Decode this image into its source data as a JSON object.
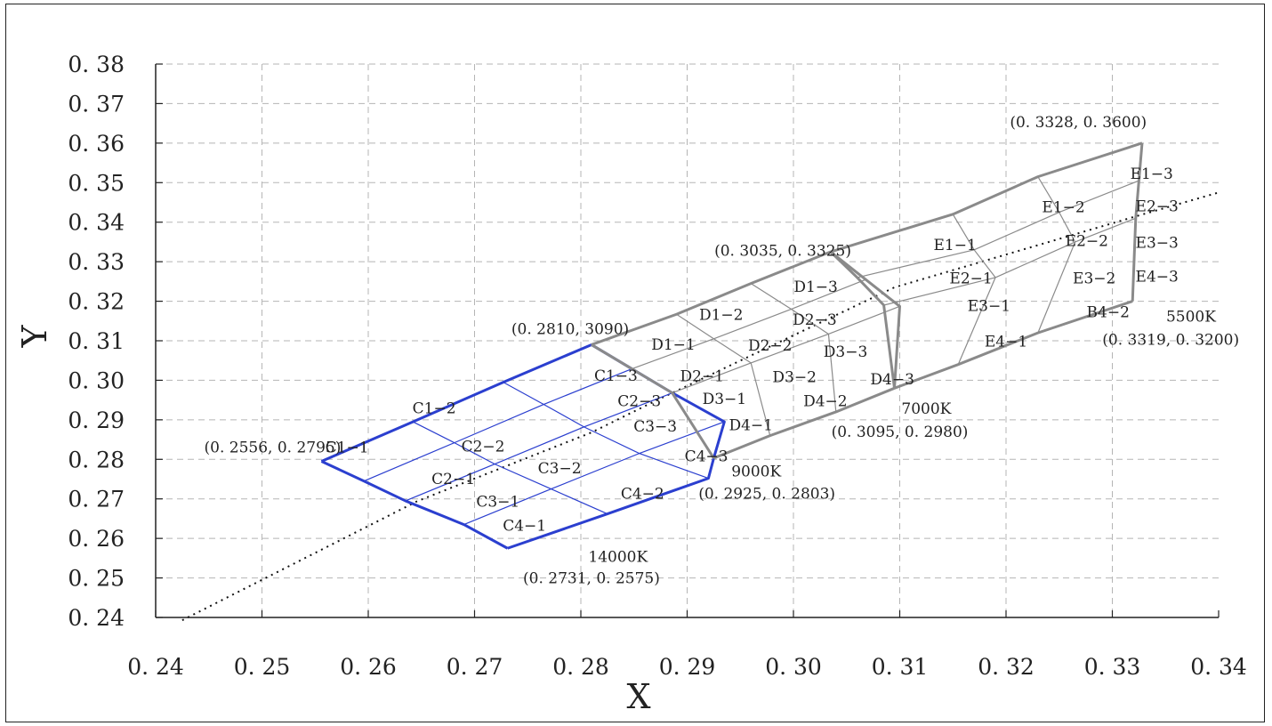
{
  "chart_data": {
    "type": "scatter",
    "xlabel": "X",
    "ylabel": "Y",
    "xlim": [
      0.24,
      0.34
    ],
    "ylim": [
      0.24,
      0.38
    ],
    "grid": true,
    "x_ticks": [
      "0. 24",
      "0. 25",
      "0. 26",
      "0. 27",
      "0. 28",
      "0. 29",
      "0. 30",
      "0. 31",
      "0. 32",
      "0. 33",
      "0. 34"
    ],
    "y_ticks": [
      "0. 24",
      "0. 25",
      "0. 26",
      "0. 27",
      "0. 28",
      "0. 29",
      "0. 30",
      "0. 31",
      "0. 32",
      "0. 33",
      "0. 34",
      "0. 35",
      "0. 36",
      "0. 37",
      "0. 38"
    ],
    "colors": {
      "C_region": "#2b3fcf",
      "DE_region": "#8a8a8a",
      "grid": "#b5b5b5"
    },
    "locus": {
      "style": "dotted",
      "points": [
        [
          0.2425,
          0.2393
        ],
        [
          0.2646,
          0.2694
        ],
        [
          0.281,
          0.2868
        ],
        [
          0.2868,
          0.2945
        ],
        [
          0.3095,
          0.3235
        ],
        [
          0.3325,
          0.3417
        ],
        [
          0.34,
          0.3475
        ]
      ]
    },
    "regions": [
      {
        "name": "C",
        "color": "#2b3fcf",
        "rows": [
          [
            [
              0.2556,
              0.2795
            ],
            [
              0.2642,
              0.2895
            ],
            [
              0.2727,
              0.2995
            ],
            [
              0.281,
              0.309
            ]
          ],
          [
            [
              0.2596,
              0.2745
            ],
            [
              0.2681,
              0.2842
            ],
            [
              0.2765,
              0.2939
            ],
            [
              0.2848,
              0.3029
            ]
          ],
          [
            [
              0.2635,
              0.2695
            ],
            [
              0.2719,
              0.2788
            ],
            [
              0.2803,
              0.2882
            ],
            [
              0.2886,
              0.2968
            ]
          ],
          [
            [
              0.269,
              0.2635
            ],
            [
              0.2772,
              0.2725
            ],
            [
              0.2855,
              0.2815
            ],
            [
              0.2935,
              0.2895
            ]
          ],
          [
            [
              0.2731,
              0.2575
            ],
            [
              0.2825,
              0.2662
            ],
            [
              0.292,
              0.2752
            ],
            [
              0.2925,
              0.2803
            ]
          ]
        ]
      },
      {
        "name": "D",
        "color": "#8a8a8a",
        "rows": [
          [
            [
              0.281,
              0.309
            ],
            [
              0.289,
              0.3167
            ],
            [
              0.296,
              0.3245
            ],
            [
              0.3035,
              0.3325
            ]
          ],
          [
            [
              0.2848,
              0.3029
            ],
            [
              0.2925,
              0.3105
            ],
            [
              0.2998,
              0.318
            ],
            [
              0.3068,
              0.3255
            ]
          ],
          [
            [
              0.2886,
              0.2968
            ],
            [
              0.296,
              0.3044
            ],
            [
              0.3033,
              0.3117
            ],
            [
              0.31,
              0.3187
            ]
          ],
          [
            [
              0.2925,
              0.2803
            ],
            [
              0.2978,
              0.286
            ],
            [
              0.304,
              0.292
            ],
            [
              0.3095,
              0.298
            ]
          ]
        ]
      },
      {
        "name": "E",
        "color": "#8a8a8a",
        "rows": [
          [
            [
              0.3035,
              0.3325
            ],
            [
              0.315,
              0.342
            ],
            [
              0.323,
              0.3515
            ],
            [
              0.3328,
              0.36
            ]
          ],
          [
            [
              0.306,
              0.326
            ],
            [
              0.317,
              0.333
            ],
            [
              0.325,
              0.3425
            ],
            [
              0.3325,
              0.3505
            ]
          ],
          [
            [
              0.3085,
              0.319
            ],
            [
              0.319,
              0.326
            ],
            [
              0.3265,
              0.335
            ],
            [
              0.3322,
              0.341
            ]
          ],
          [
            [
              0.3095,
              0.298
            ],
            [
              0.3155,
              0.304
            ],
            [
              0.323,
              0.312
            ],
            [
              0.3319,
              0.32
            ]
          ]
        ]
      }
    ],
    "cells": [
      {
        "label": "C1−1",
        "x": 0.258,
        "y": 0.2818
      },
      {
        "label": "C1−2",
        "x": 0.2662,
        "y": 0.2917
      },
      {
        "label": "C1−3",
        "x": 0.2833,
        "y": 0.2999
      },
      {
        "label": "C2−1",
        "x": 0.268,
        "y": 0.2738
      },
      {
        "label": "C2−2",
        "x": 0.2708,
        "y": 0.282
      },
      {
        "label": "C2−3",
        "x": 0.2855,
        "y": 0.2935
      },
      {
        "label": "C3−1",
        "x": 0.2722,
        "y": 0.268
      },
      {
        "label": "C3−2",
        "x": 0.278,
        "y": 0.2765
      },
      {
        "label": "C3−3",
        "x": 0.287,
        "y": 0.287
      },
      {
        "label": "C4−1",
        "x": 0.2747,
        "y": 0.262
      },
      {
        "label": "C4−2",
        "x": 0.2858,
        "y": 0.27
      },
      {
        "label": "C4−3",
        "x": 0.2918,
        "y": 0.2795
      },
      {
        "label": "D1−1",
        "x": 0.2887,
        "y": 0.3077
      },
      {
        "label": "D1−2",
        "x": 0.2932,
        "y": 0.3153
      },
      {
        "label": "D1−3",
        "x": 0.3021,
        "y": 0.3224
      },
      {
        "label": "D2−1",
        "x": 0.2914,
        "y": 0.2998
      },
      {
        "label": "D2−2",
        "x": 0.2978,
        "y": 0.3075
      },
      {
        "label": "D2−3",
        "x": 0.302,
        "y": 0.314
      },
      {
        "label": "D3−1",
        "x": 0.2935,
        "y": 0.294
      },
      {
        "label": "D3−2",
        "x": 0.3001,
        "y": 0.2995
      },
      {
        "label": "D3−3",
        "x": 0.3049,
        "y": 0.306
      },
      {
        "label": "D4−1",
        "x": 0.296,
        "y": 0.2874
      },
      {
        "label": "D4−2",
        "x": 0.303,
        "y": 0.2935
      },
      {
        "label": "D4−3",
        "x": 0.3093,
        "y": 0.299
      },
      {
        "label": "E1−1",
        "x": 0.3152,
        "y": 0.333
      },
      {
        "label": "E1−2",
        "x": 0.3254,
        "y": 0.3425
      },
      {
        "label": "E1−3",
        "x": 0.3337,
        "y": 0.351
      },
      {
        "label": "E2−1",
        "x": 0.3167,
        "y": 0.3245
      },
      {
        "label": "E2−2",
        "x": 0.3276,
        "y": 0.334
      },
      {
        "label": "E2−3",
        "x": 0.3342,
        "y": 0.3428
      },
      {
        "label": "E3−1",
        "x": 0.3184,
        "y": 0.3175
      },
      {
        "label": "E3−2",
        "x": 0.3283,
        "y": 0.3245
      },
      {
        "label": "E3−3",
        "x": 0.3342,
        "y": 0.3335
      },
      {
        "label": "E4−1",
        "x": 0.32,
        "y": 0.3085
      },
      {
        "label": "B4−2",
        "x": 0.3296,
        "y": 0.316
      },
      {
        "label": "E4−3",
        "x": 0.3342,
        "y": 0.325
      }
    ],
    "annotations": [
      {
        "text": "(0. 3328, 0. 3600)",
        "x": 0.3268,
        "y": 0.364
      },
      {
        "text": "(0. 3035, 0. 3325)",
        "x": 0.299,
        "y": 0.3315
      },
      {
        "text": "(0. 2810, 3090)",
        "x": 0.279,
        "y": 0.3117
      },
      {
        "text": "(0. 2556, 0. 2795)",
        "x": 0.251,
        "y": 0.2818
      },
      {
        "text": "5500K",
        "x": 0.3374,
        "y": 0.3148
      },
      {
        "text": "(0. 3319, 0. 3200)",
        "x": 0.3355,
        "y": 0.309
      },
      {
        "text": "7000K",
        "x": 0.3125,
        "y": 0.2915
      },
      {
        "text": "(0. 3095, 0. 2980)",
        "x": 0.31,
        "y": 0.2857
      },
      {
        "text": "9000K",
        "x": 0.2965,
        "y": 0.2757
      },
      {
        "text": "(0. 2925, 0. 2803)",
        "x": 0.2975,
        "y": 0.27
      },
      {
        "text": "14000K",
        "x": 0.2835,
        "y": 0.2541
      },
      {
        "text": "(0. 2731, 0. 2575)",
        "x": 0.281,
        "y": 0.2487
      }
    ]
  }
}
